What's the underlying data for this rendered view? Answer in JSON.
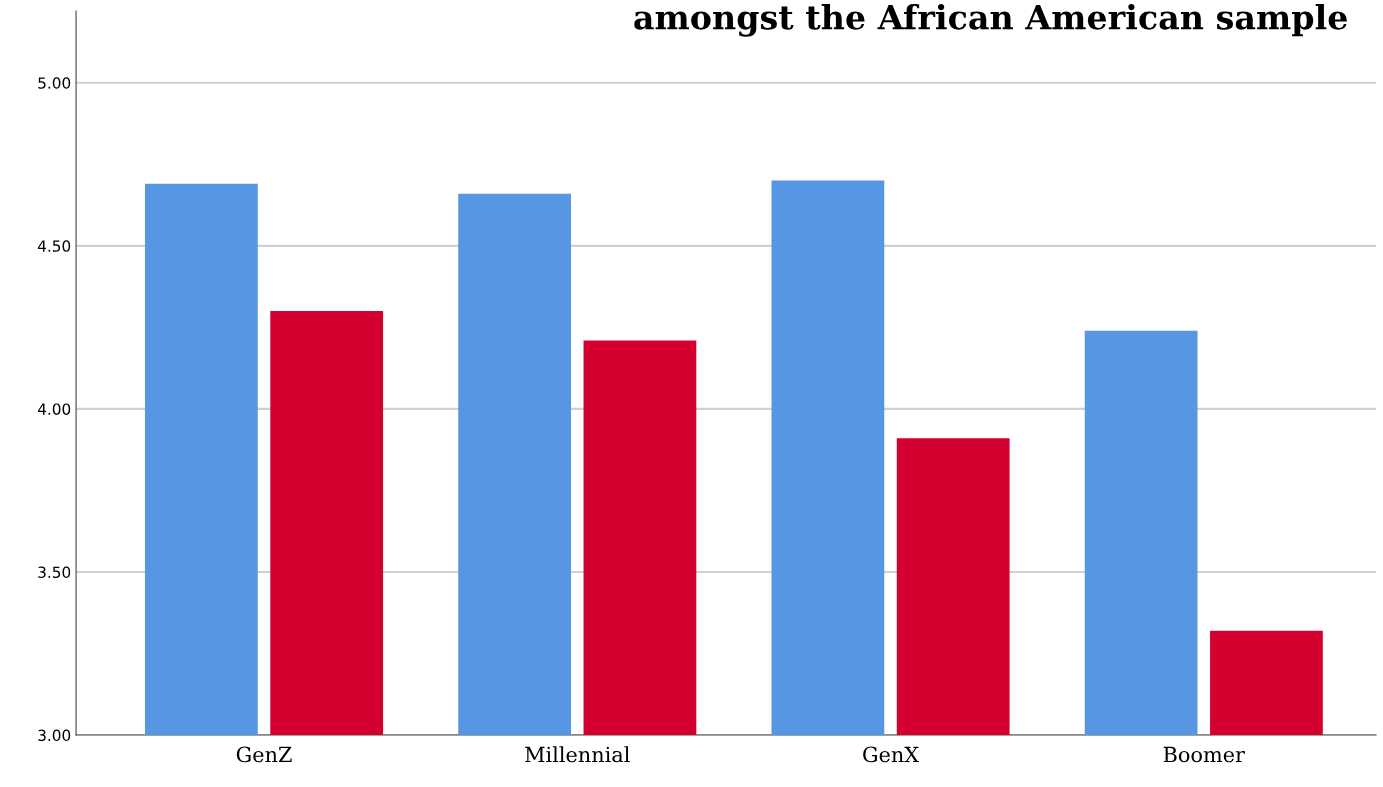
{
  "chart_data": {
    "type": "bar",
    "title": "amongst the African American sample",
    "categories": [
      "GenZ",
      "Millennial",
      "GenX",
      "Boomer"
    ],
    "series": [
      {
        "color": "#5696e2",
        "values": [
          4.69,
          4.66,
          4.7,
          4.24
        ]
      },
      {
        "color": "#d40030",
        "values": [
          4.3,
          4.21,
          3.91,
          3.32
        ]
      }
    ],
    "ylim": [
      3.0,
      5.22
    ],
    "yticks": [
      {
        "value": 3,
        "label": "3.00"
      },
      {
        "value": 3.5,
        "label": "3.50"
      },
      {
        "value": 4,
        "label": "4.00"
      },
      {
        "value": 4.5,
        "label": "4.50"
      },
      {
        "value": 5,
        "label": "5.00"
      }
    ],
    "grid": "y"
  }
}
